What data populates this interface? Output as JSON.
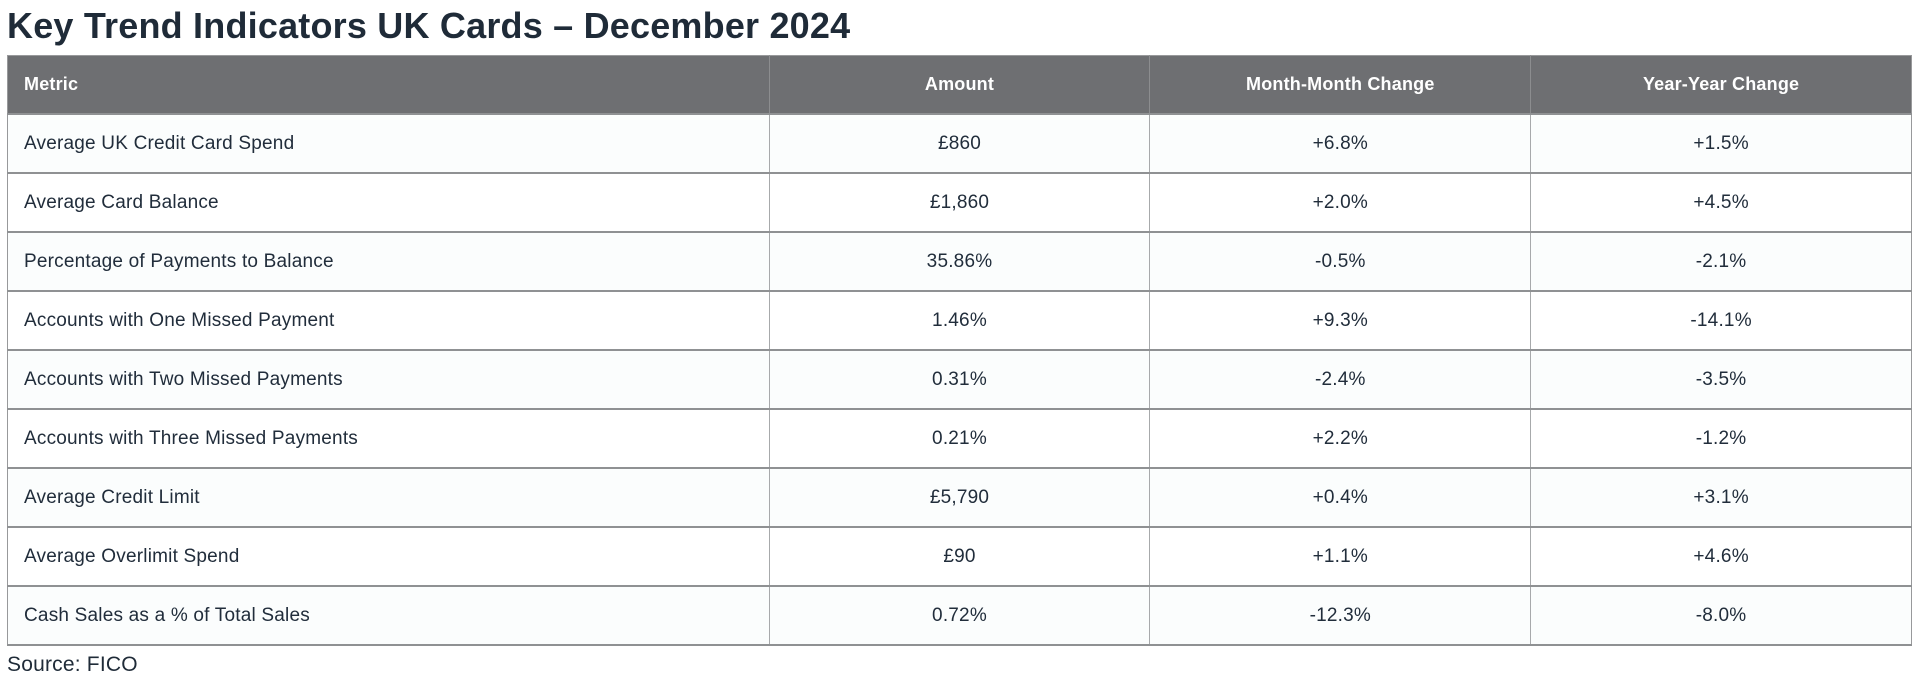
{
  "page": {
    "title": "Key Trend Indicators UK Cards – December 2024",
    "source_note": "Source: FICO"
  },
  "colors": {
    "header_background": "#6e6f72",
    "header_text": "#ffffff",
    "body_text": "#1f2b38",
    "row_border": "#8f9193",
    "column_border": "#a7a9ab"
  },
  "table": {
    "columns": [
      "Metric",
      "Amount",
      "Month-Month Change",
      "Year-Year Change"
    ],
    "rows": [
      {
        "metric": "Average UK Credit Card Spend",
        "amount": "£860",
        "mom": "+6.8%",
        "yoy": "+1.5%"
      },
      {
        "metric": "Average Card Balance",
        "amount": "£1,860",
        "mom": "+2.0%",
        "yoy": "+4.5%"
      },
      {
        "metric": "Percentage of Payments to Balance",
        "amount": "35.86%",
        "mom": "-0.5%",
        "yoy": "-2.1%"
      },
      {
        "metric": "Accounts with One Missed Payment",
        "amount": "1.46%",
        "mom": "+9.3%",
        "yoy": "-14.1%"
      },
      {
        "metric": "Accounts with Two Missed Payments",
        "amount": "0.31%",
        "mom": "-2.4%",
        "yoy": "-3.5%"
      },
      {
        "metric": "Accounts with Three Missed Payments",
        "amount": "0.21%",
        "mom": "+2.2%",
        "yoy": "-1.2%"
      },
      {
        "metric": "Average Credit Limit",
        "amount": "£5,790",
        "mom": "+0.4%",
        "yoy": "+3.1%"
      },
      {
        "metric": "Average Overlimit Spend",
        "amount": "£90",
        "mom": "+1.1%",
        "yoy": "+4.6%"
      },
      {
        "metric": "Cash Sales as a % of Total Sales",
        "amount": "0.72%",
        "mom": "-12.3%",
        "yoy": "-8.0%"
      }
    ]
  },
  "chart_data": {
    "type": "table",
    "title": "Key Trend Indicators UK Cards – December 2024",
    "columns": [
      "Metric",
      "Amount",
      "Month-Month Change",
      "Year-Year Change"
    ],
    "categories": [
      "Average UK Credit Card Spend",
      "Average Card Balance",
      "Percentage of Payments to Balance",
      "Accounts with One Missed Payment",
      "Accounts with Two Missed Payments",
      "Accounts with Three Missed Payments",
      "Average Credit Limit",
      "Average Overlimit Spend",
      "Cash Sales as a % of Total Sales"
    ],
    "series": [
      {
        "name": "Amount",
        "values": [
          "£860",
          "£1,860",
          "35.86%",
          "1.46%",
          "0.31%",
          "0.21%",
          "£5,790",
          "£90",
          "0.72%"
        ]
      },
      {
        "name": "Month-Month Change (%)",
        "values": [
          6.8,
          2.0,
          -0.5,
          9.3,
          -2.4,
          2.2,
          0.4,
          1.1,
          -12.3
        ]
      },
      {
        "name": "Year-Year Change (%)",
        "values": [
          1.5,
          4.5,
          -2.1,
          -14.1,
          -3.5,
          -1.2,
          3.1,
          4.6,
          -8.0
        ]
      }
    ],
    "source": "Source: FICO"
  }
}
